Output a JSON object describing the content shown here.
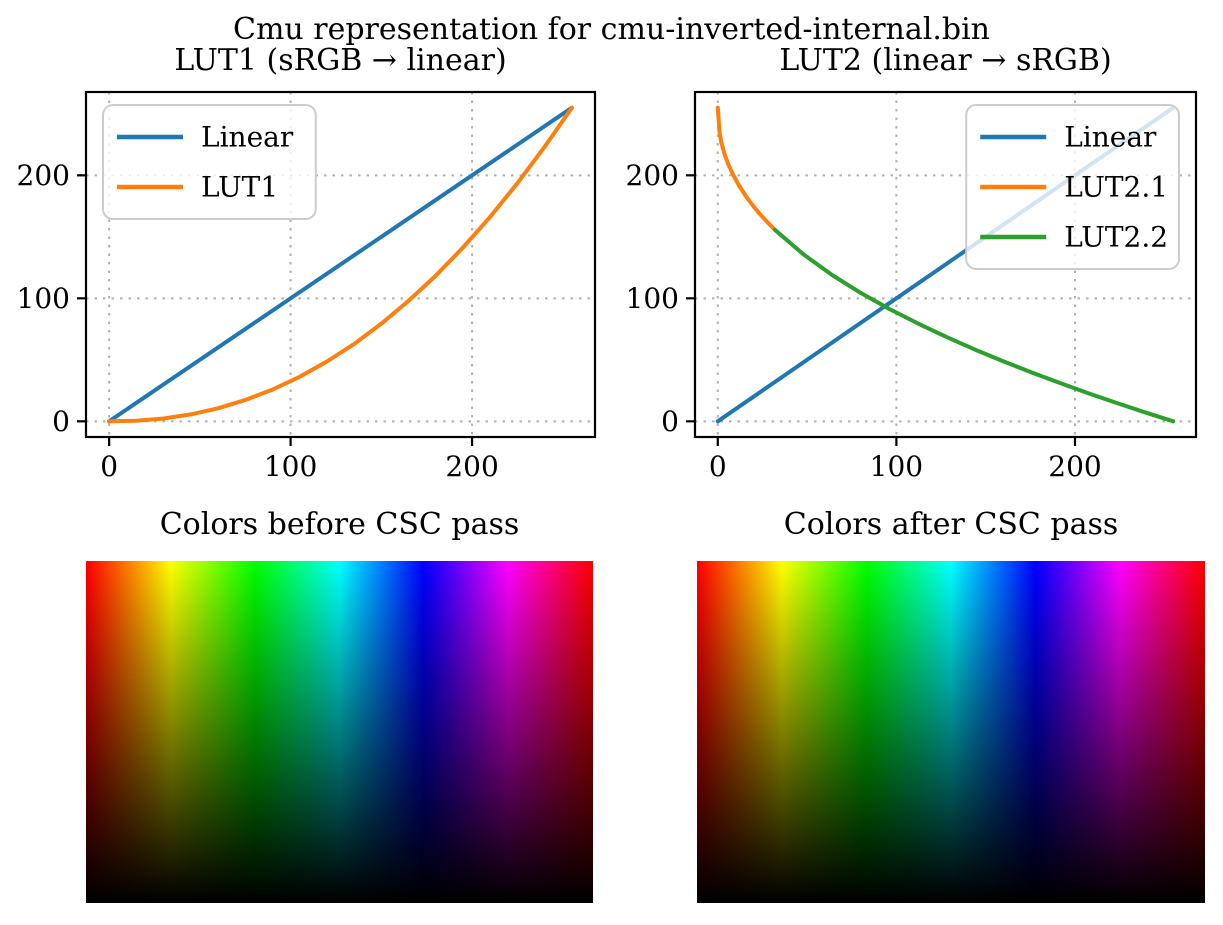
{
  "figure": {
    "suptitle": "Cmu representation for cmu-inverted-internal.bin",
    "background": "#ffffff"
  },
  "style": {
    "grid_color": "#b0b0b0",
    "spine_color": "#000000",
    "legend_border": "#cccccc",
    "legend_bg": "#ffffff",
    "legend_bg_opacity": 0.8,
    "series_colors": {
      "blue": "#1f77b4",
      "orange": "#ff7f0e",
      "green": "#2ca02c"
    }
  },
  "chart_data": [
    {
      "type": "line",
      "title": "LUT1 (sRGB → linear)",
      "xlim": [
        -12.75,
        267.75
      ],
      "ylim": [
        -12.75,
        267.75
      ],
      "xticks": [
        0,
        100,
        200
      ],
      "yticks": [
        0,
        100,
        200
      ],
      "grid": true,
      "grid_style": "dotted",
      "legend_position": "upper left",
      "series": [
        {
          "name": "Linear",
          "color": "#1f77b4",
          "x": [
            0,
            255
          ],
          "y": [
            0,
            255
          ]
        },
        {
          "name": "LUT1",
          "color": "#ff7f0e",
          "x": [
            0,
            15,
            30,
            45,
            60,
            75,
            90,
            105,
            120,
            135,
            150,
            165,
            180,
            195,
            210,
            225,
            240,
            255
          ],
          "y": [
            0,
            0.5,
            2.3,
            5.6,
            10.6,
            17.3,
            25.8,
            36.2,
            48.6,
            62.9,
            79.4,
            97.9,
            118.5,
            141.3,
            166.3,
            193.6,
            223.2,
            255
          ]
        }
      ]
    },
    {
      "type": "line",
      "title": "LUT2 (linear → sRGB)",
      "xlim": [
        -12.75,
        267.75
      ],
      "ylim": [
        -12.75,
        267.75
      ],
      "xticks": [
        0,
        100,
        200
      ],
      "yticks": [
        0,
        100,
        200
      ],
      "grid": true,
      "grid_style": "dotted",
      "legend_position": "upper right",
      "series": [
        {
          "name": "Linear",
          "color": "#1f77b4",
          "x": [
            0,
            255
          ],
          "y": [
            0,
            255
          ]
        },
        {
          "name": "LUT2.1",
          "color": "#ff7f0e",
          "x": [
            0,
            1,
            2,
            4,
            6,
            8,
            12,
            16,
            20,
            24,
            28,
            32
          ],
          "y": [
            255,
            234.5,
            226.8,
            216.4,
            208.6,
            202.1,
            191.4,
            182.5,
            174.8,
            167.9,
            161.6,
            155.7
          ]
        },
        {
          "name": "LUT2.2",
          "color": "#2ca02c",
          "x": [
            32,
            48,
            64,
            80,
            96,
            112,
            128,
            144,
            160,
            176,
            192,
            208,
            224,
            240,
            255
          ],
          "y": [
            155.7,
            135.7,
            119.0,
            104.4,
            91.4,
            79.6,
            68.6,
            58.3,
            48.7,
            39.6,
            30.9,
            22.5,
            14.6,
            6.9,
            0
          ]
        }
      ]
    },
    {
      "type": "heatmap",
      "title": "Colors before CSC pass",
      "x_axis": "hue 0-360 deg, red to red",
      "y_axis": "value 1 (top) to 0 (bottom)",
      "saturation": 1
    },
    {
      "type": "heatmap",
      "title": "Colors after CSC pass",
      "x_axis": "hue 0-360 deg, red to red",
      "y_axis": "value 1 (top) to 0 (bottom)",
      "saturation": 1
    }
  ]
}
